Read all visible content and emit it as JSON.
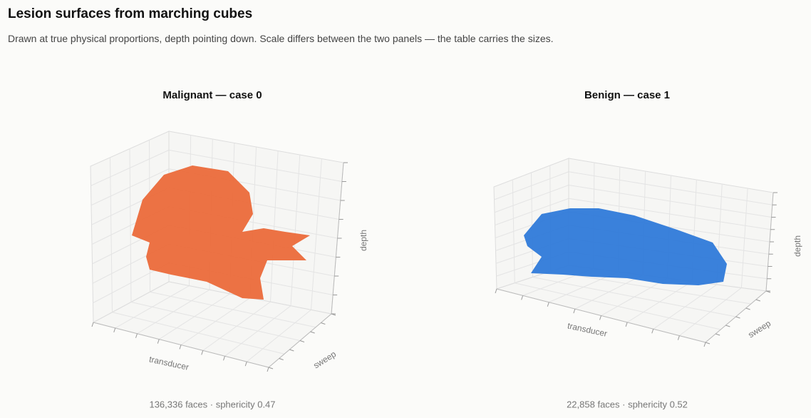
{
  "header": {
    "title": "Lesion surfaces from marching cubes",
    "subtitle": "Drawn at true physical proportions, depth pointing down. Scale differs between the two panels — the table carries the sizes."
  },
  "panels": [
    {
      "title": "Malignant — case 0",
      "color": "#eb6a3a",
      "axes": {
        "x": "transducer",
        "y": "sweep",
        "z": "depth"
      },
      "caption": "136,336 faces · sphericity 0.47"
    },
    {
      "title": "Benign — case 1",
      "color": "#2f7ad9",
      "axes": {
        "x": "transducer",
        "y": "sweep",
        "z": "depth"
      },
      "caption": "22,858 faces · sphericity 0.52"
    }
  ]
}
